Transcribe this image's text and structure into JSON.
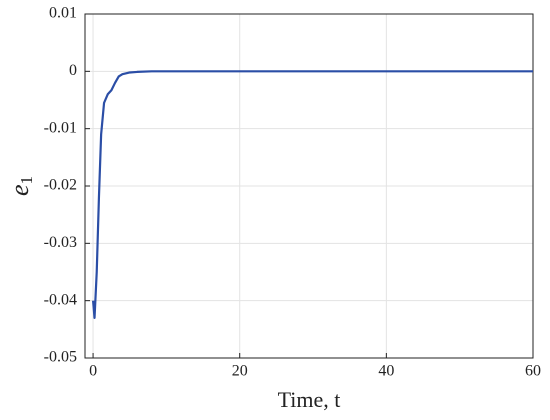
{
  "chart_data": {
    "type": "line",
    "xlabel": "Time, t",
    "ylabel": "e",
    "ylabel_subscript": "1",
    "x": [
      0,
      0.2,
      0.5,
      0.8,
      1.1,
      1.5,
      2,
      2.5,
      3,
      3.5,
      4,
      5,
      6,
      8,
      10,
      20,
      30,
      40,
      50,
      60
    ],
    "values": [
      -0.04,
      -0.043,
      -0.035,
      -0.022,
      -0.011,
      -0.0055,
      -0.004,
      -0.0033,
      -0.002,
      -0.0009,
      -0.0005,
      -0.0002,
      -0.0001,
      0,
      0,
      0,
      0,
      0,
      0,
      0
    ],
    "color": "#2b4ea6",
    "xlim": [
      -1.1,
      60
    ],
    "ylim": [
      -0.05,
      0.01
    ],
    "xticks": [
      0,
      20,
      40,
      60
    ],
    "yticks": [
      -0.05,
      -0.04,
      -0.03,
      -0.02,
      -0.01,
      0,
      0.01
    ],
    "grid": true
  }
}
